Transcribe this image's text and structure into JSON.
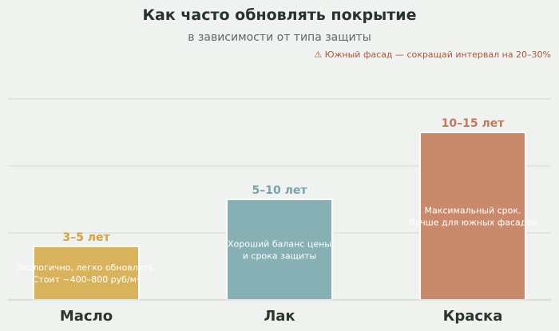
{
  "chart_data": {
    "type": "bar",
    "title": "Как часто обновлять покрытие",
    "subtitle": "в зависимости от типа защиты",
    "annotation": "⚠ Южный фасад — сокращай интервал на 20–30%",
    "categories": [
      "Масло",
      "Лак",
      "Краска"
    ],
    "values": [
      4,
      7.5,
      12.5
    ],
    "value_labels": [
      "3–5 лет",
      "5–10 лет",
      "10–15 лет"
    ],
    "descriptions": [
      [
        "Экологично, легко обновлять.",
        "Стоит ~400–800 руб/м²"
      ],
      [
        "Хороший баланс цены",
        "и срока защиты"
      ],
      [
        "Максимальный срок.",
        "Лучше для южных фасадов"
      ]
    ],
    "colors": [
      "#d9b25c",
      "#87b0b4",
      "#c9896c"
    ],
    "label_colors": [
      "#d4a23f",
      "#79a3ab",
      "#bf7a5e"
    ],
    "ylim": [
      0,
      15
    ],
    "grid": true,
    "xlabel": "",
    "ylabel": ""
  }
}
